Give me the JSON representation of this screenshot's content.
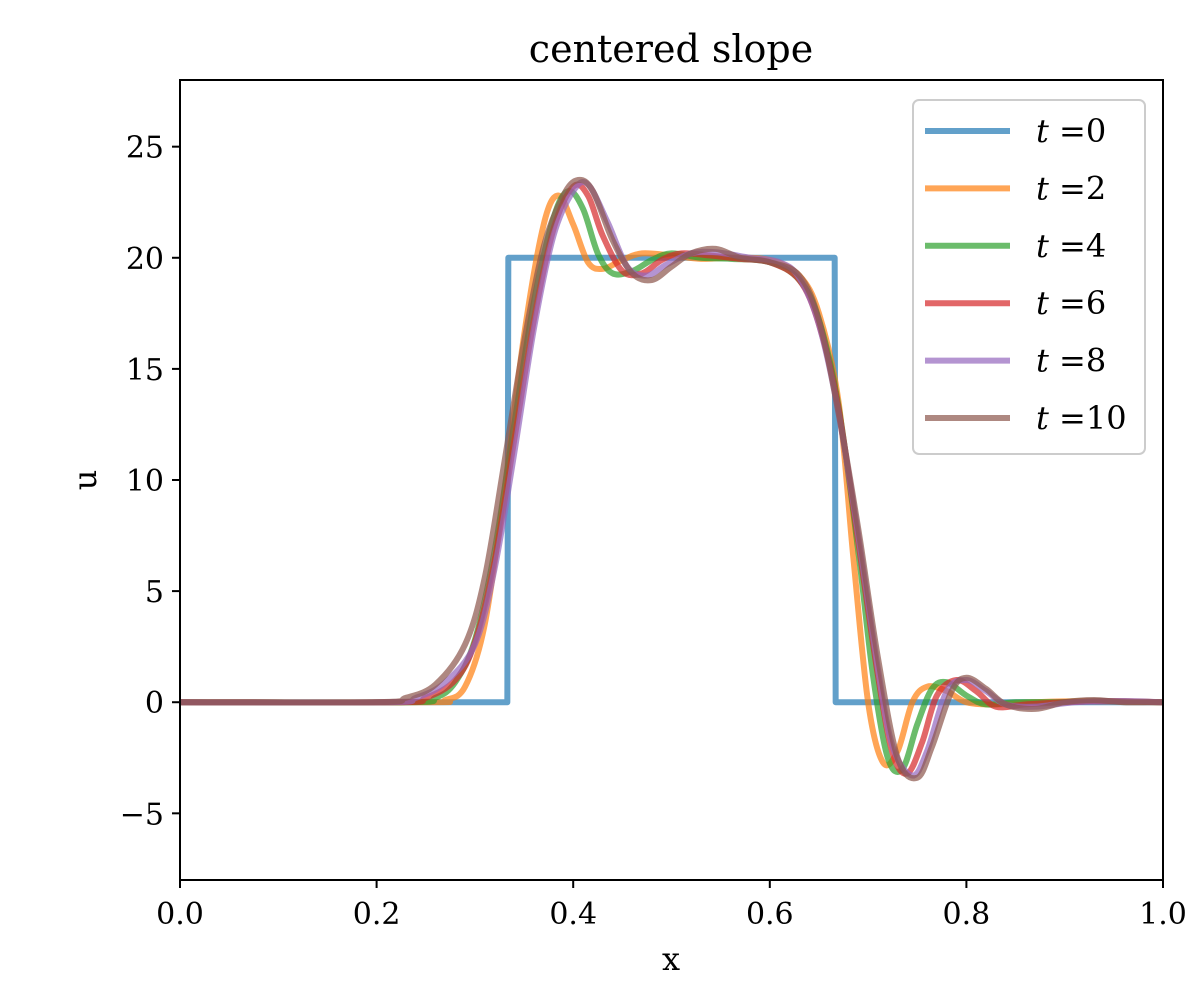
{
  "chart_data": {
    "type": "line",
    "title": "centered slope",
    "xlabel": "x",
    "ylabel": "u",
    "xlim": [
      0.0,
      1.0
    ],
    "ylim": [
      -8,
      28
    ],
    "xticks": [
      0.0,
      0.2,
      0.4,
      0.6,
      0.8,
      1.0
    ],
    "xtick_labels": [
      "0.0",
      "0.2",
      "0.4",
      "0.6",
      "0.8",
      "1.0"
    ],
    "yticks": [
      -5,
      0,
      5,
      10,
      15,
      20,
      25
    ],
    "ytick_labels": [
      "−5",
      "0",
      "5",
      "10",
      "15",
      "20",
      "25"
    ],
    "grid": false,
    "legend_position": "top-right",
    "legend_prefix": "t =",
    "series": [
      {
        "name": "0",
        "color": "#1f77b4",
        "x": [
          0.0,
          0.333,
          0.334,
          0.666,
          0.667,
          1.0
        ],
        "y": [
          0,
          0,
          20,
          20,
          0,
          0
        ]
      },
      {
        "name": "2",
        "color": "#ff7f0e",
        "x": [
          0.0,
          0.25,
          0.27,
          0.29,
          0.31,
          0.33,
          0.35,
          0.37,
          0.385,
          0.4,
          0.415,
          0.43,
          0.45,
          0.47,
          0.5,
          0.53,
          0.56,
          0.6,
          0.63,
          0.65,
          0.67,
          0.685,
          0.7,
          0.715,
          0.73,
          0.745,
          0.76,
          0.78,
          0.8,
          0.83,
          0.87,
          0.92,
          1.0
        ],
        "y": [
          0,
          0,
          0.1,
          0.7,
          3.5,
          9.5,
          16.5,
          21.5,
          22.8,
          21.5,
          19.8,
          19.5,
          19.9,
          20.2,
          20.1,
          19.95,
          20.0,
          19.9,
          19.2,
          17.5,
          13.5,
          6.5,
          0.0,
          -2.7,
          -2.2,
          0.0,
          0.7,
          0.5,
          0.0,
          -0.1,
          0.0,
          0.05,
          0.0
        ]
      },
      {
        "name": "4",
        "color": "#2ca02c",
        "x": [
          0.0,
          0.23,
          0.26,
          0.28,
          0.3,
          0.32,
          0.34,
          0.36,
          0.38,
          0.395,
          0.41,
          0.425,
          0.44,
          0.46,
          0.48,
          0.5,
          0.53,
          0.56,
          0.6,
          0.63,
          0.65,
          0.67,
          0.69,
          0.705,
          0.72,
          0.735,
          0.75,
          0.765,
          0.78,
          0.8,
          0.82,
          0.85,
          0.89,
          0.94,
          1.0
        ],
        "y": [
          0,
          0,
          0.2,
          0.9,
          2.8,
          6.8,
          12.5,
          18.0,
          21.8,
          23.0,
          22.2,
          20.2,
          19.3,
          19.4,
          19.9,
          20.2,
          20.0,
          19.95,
          19.8,
          19.0,
          17.2,
          13.3,
          6.8,
          1.2,
          -2.5,
          -3.0,
          -1.0,
          0.6,
          0.9,
          0.3,
          -0.1,
          0.0,
          0.0,
          0.05,
          0.0
        ]
      },
      {
        "name": "6",
        "color": "#d62728",
        "x": [
          0.0,
          0.22,
          0.25,
          0.28,
          0.3,
          0.32,
          0.34,
          0.36,
          0.38,
          0.4,
          0.415,
          0.43,
          0.45,
          0.47,
          0.49,
          0.51,
          0.54,
          0.57,
          0.6,
          0.63,
          0.65,
          0.67,
          0.69,
          0.71,
          0.725,
          0.74,
          0.755,
          0.77,
          0.79,
          0.81,
          0.83,
          0.86,
          0.9,
          0.95,
          1.0
        ],
        "y": [
          0,
          0,
          0.2,
          1.0,
          2.7,
          6.4,
          11.8,
          17.2,
          21.3,
          23.2,
          22.8,
          21.0,
          19.4,
          19.3,
          19.9,
          20.2,
          20.1,
          19.95,
          19.8,
          19.0,
          17.0,
          13.2,
          7.2,
          1.2,
          -2.3,
          -3.2,
          -1.8,
          0.3,
          1.0,
          0.5,
          -0.2,
          -0.1,
          0.0,
          0.05,
          0.0
        ]
      },
      {
        "name": "8",
        "color": "#9467bd",
        "x": [
          0.0,
          0.21,
          0.24,
          0.27,
          0.3,
          0.32,
          0.34,
          0.36,
          0.38,
          0.4,
          0.415,
          0.435,
          0.455,
          0.475,
          0.495,
          0.52,
          0.545,
          0.58,
          0.61,
          0.63,
          0.65,
          0.67,
          0.69,
          0.71,
          0.725,
          0.745,
          0.76,
          0.78,
          0.8,
          0.82,
          0.84,
          0.87,
          0.91,
          0.96,
          1.0
        ],
        "y": [
          0,
          0,
          0.2,
          0.9,
          2.6,
          6.0,
          11.2,
          16.8,
          21.0,
          23.0,
          23.3,
          21.6,
          19.6,
          19.2,
          19.7,
          20.2,
          20.25,
          20.0,
          19.8,
          19.1,
          17.0,
          13.0,
          7.5,
          1.5,
          -2.0,
          -3.3,
          -2.2,
          0.5,
          1.0,
          0.5,
          -0.1,
          -0.2,
          0.0,
          0.05,
          0.0
        ]
      },
      {
        "name": "10",
        "color": "#8c564b",
        "x": [
          0.0,
          0.2,
          0.23,
          0.26,
          0.29,
          0.31,
          0.33,
          0.35,
          0.37,
          0.39,
          0.405,
          0.42,
          0.44,
          0.46,
          0.48,
          0.5,
          0.52,
          0.545,
          0.57,
          0.6,
          0.63,
          0.65,
          0.67,
          0.69,
          0.71,
          0.73,
          0.75,
          0.765,
          0.785,
          0.8,
          0.82,
          0.84,
          0.87,
          0.9,
          0.93,
          0.96,
          1.0
        ],
        "y": [
          0,
          0,
          0.2,
          0.8,
          2.6,
          5.6,
          10.8,
          16.2,
          20.5,
          22.8,
          23.5,
          23.0,
          20.8,
          19.3,
          19.0,
          19.6,
          20.2,
          20.4,
          20.0,
          19.8,
          19.2,
          17.2,
          13.0,
          7.8,
          2.0,
          -2.5,
          -3.4,
          -2.0,
          0.5,
          1.1,
          0.6,
          -0.1,
          -0.3,
          0.0,
          0.1,
          0.0,
          0.0
        ]
      }
    ]
  }
}
